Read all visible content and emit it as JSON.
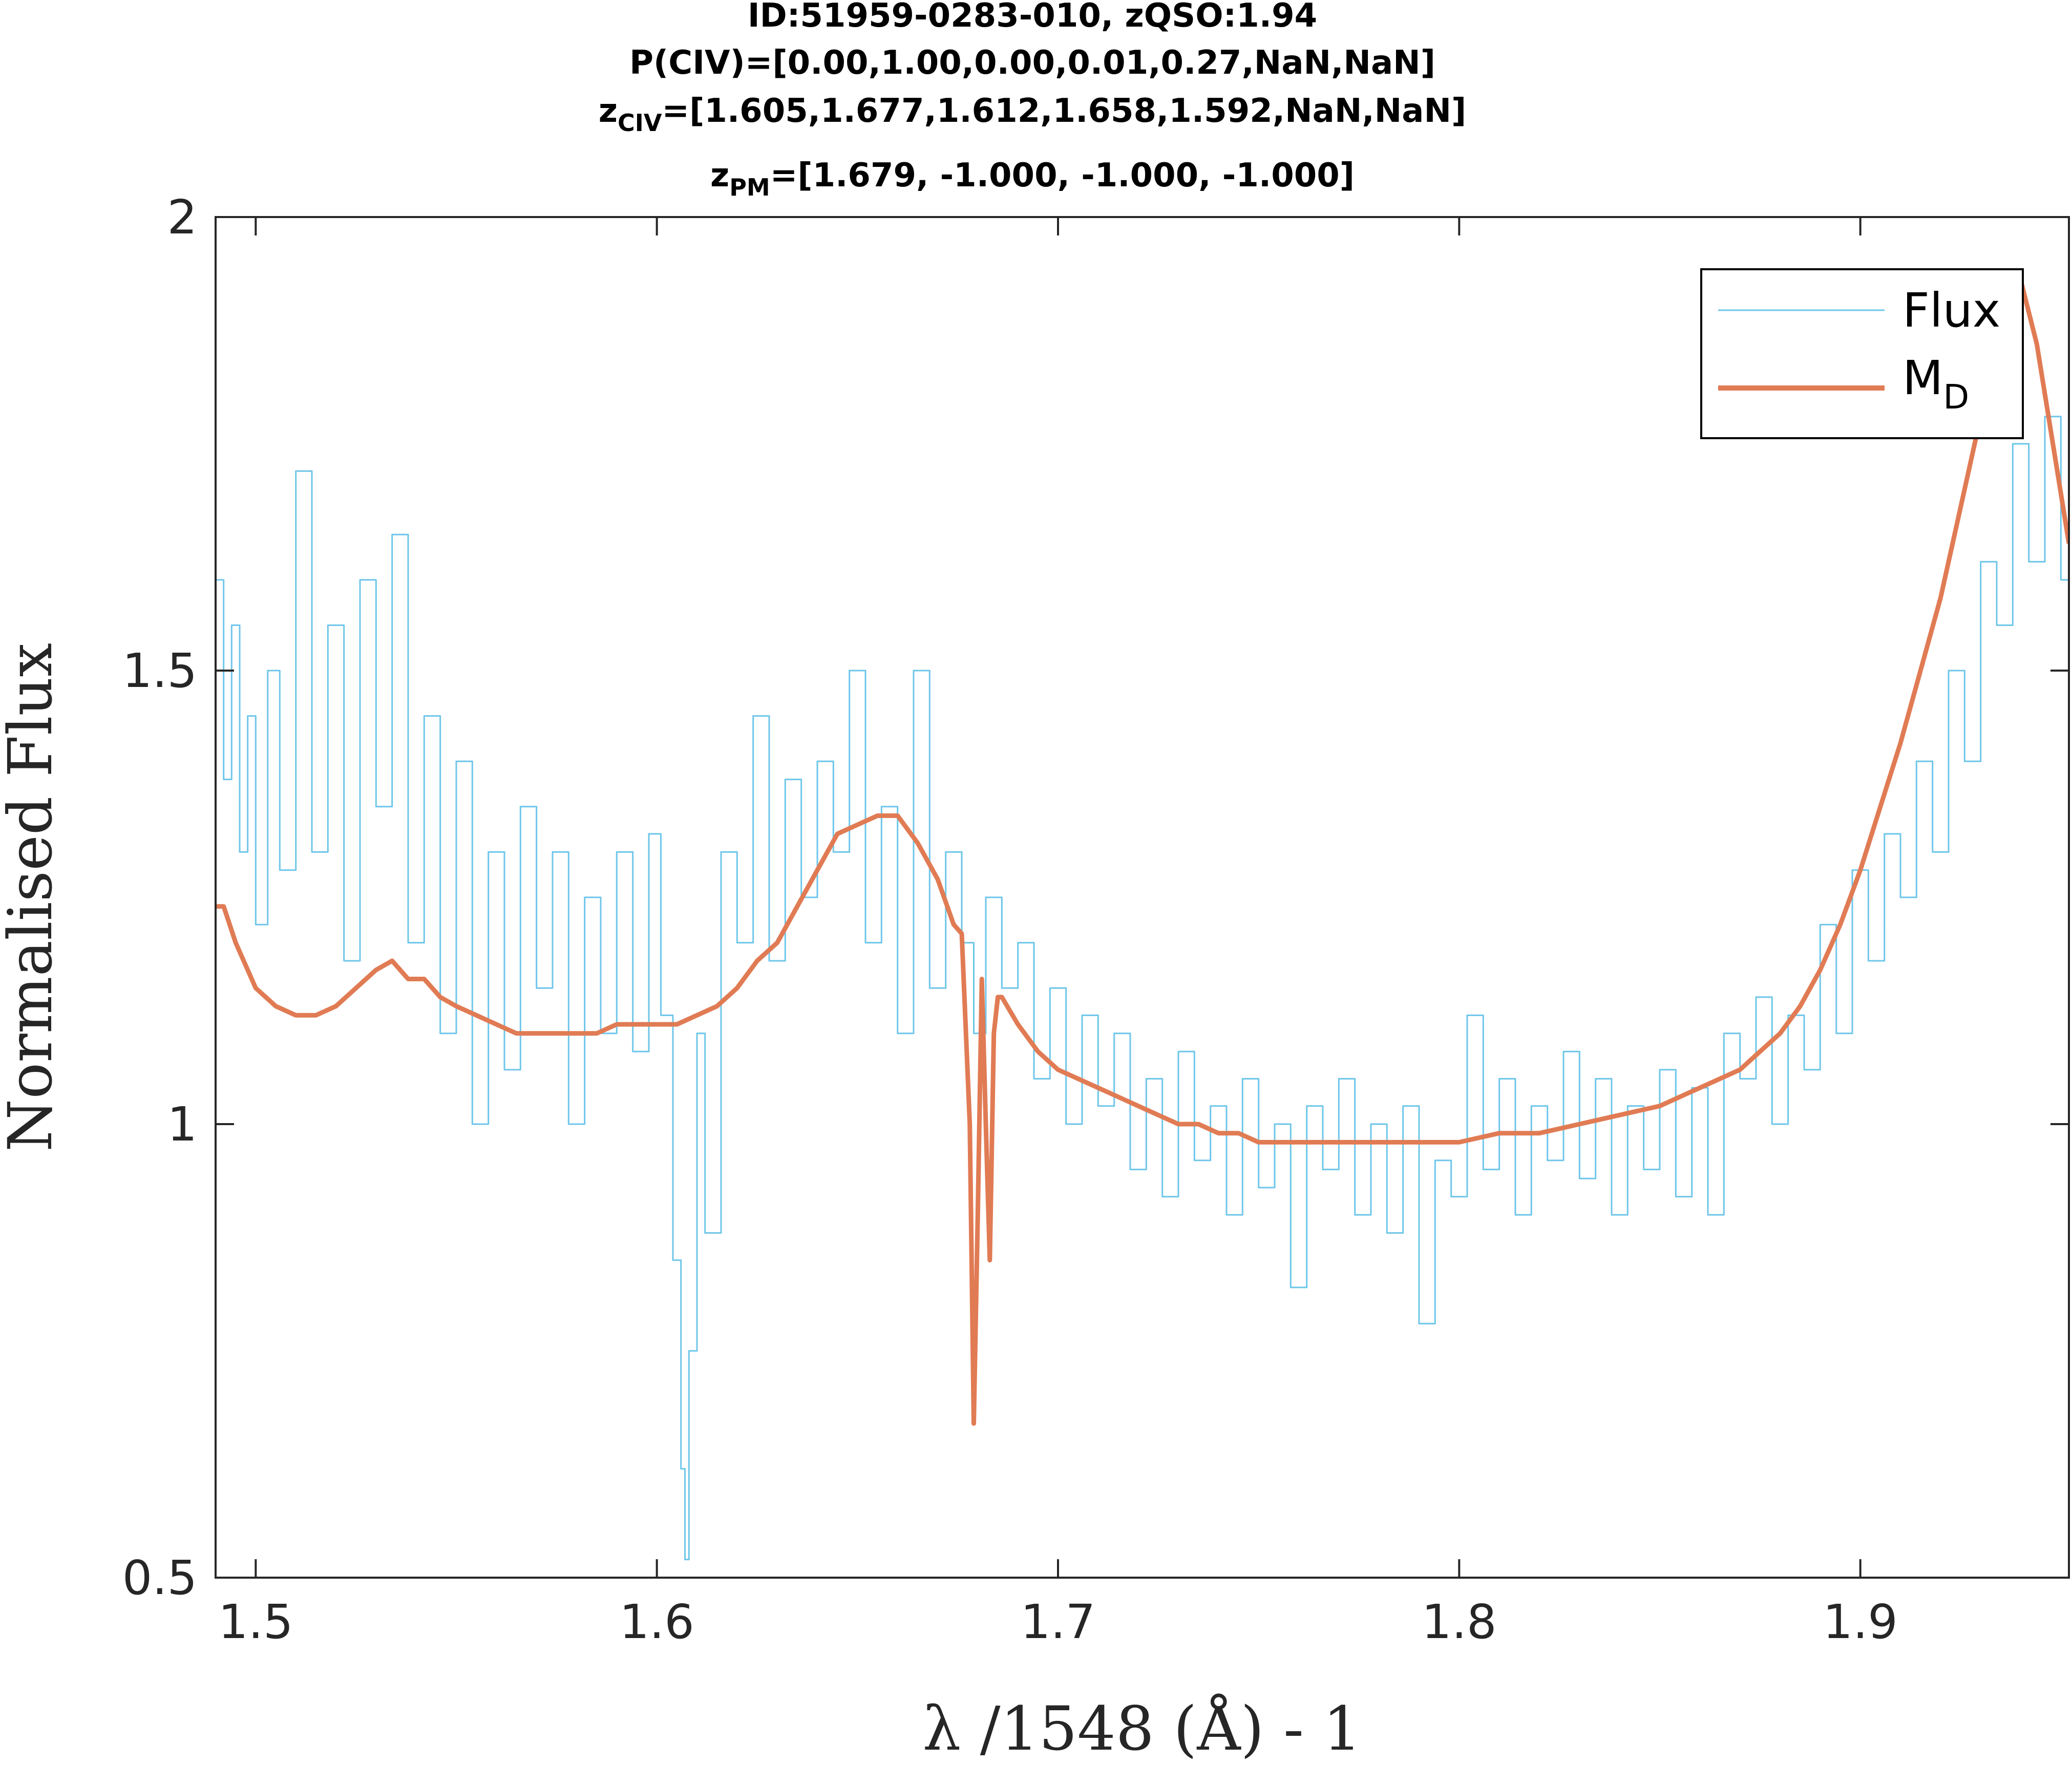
{
  "chart_data": {
    "type": "line",
    "title_lines": {
      "line1": "ID:51959-0283-010, zQSO:1.94",
      "line2": "P(CIV)=[0.00,1.00,0.00,0.01,0.27,NaN,NaN]",
      "line3_sym": "z",
      "line3_sub": "CIV",
      "line3_rest": "=[1.605,1.677,1.612,1.658,1.592,NaN,NaN]",
      "line4_sym": "z",
      "line4_sub": "PM",
      "line4_rest": "=[1.679, -1.000, -1.000, -1.000]"
    },
    "xlabel": "λ /1548 (Å) - 1",
    "ylabel": "Normalised Flux",
    "xlim": [
      1.49,
      1.952
    ],
    "ylim": [
      0.5,
      2.0
    ],
    "xticks": [
      1.5,
      1.6,
      1.7,
      1.8,
      1.9
    ],
    "xtick_labels": [
      "1.5",
      "1.6",
      "1.7",
      "1.8",
      "1.9"
    ],
    "yticks": [
      0.5,
      1.0,
      1.5,
      2.0
    ],
    "ytick_labels": [
      "0.5",
      "1",
      "1.5",
      "2"
    ],
    "legend_position": "top-right",
    "series": [
      {
        "name": "Flux",
        "legend_main": "Flux",
        "legend_sub": "",
        "color": "#6ec6ea",
        "style": "stairs",
        "x": [
          1.49,
          1.492,
          1.494,
          1.496,
          1.498,
          1.5,
          1.503,
          1.506,
          1.51,
          1.514,
          1.518,
          1.522,
          1.526,
          1.53,
          1.534,
          1.538,
          1.542,
          1.546,
          1.55,
          1.554,
          1.558,
          1.562,
          1.566,
          1.57,
          1.574,
          1.578,
          1.582,
          1.586,
          1.59,
          1.594,
          1.598,
          1.601,
          1.604,
          1.606,
          1.607,
          1.608,
          1.61,
          1.612,
          1.616,
          1.62,
          1.624,
          1.628,
          1.632,
          1.636,
          1.64,
          1.644,
          1.648,
          1.652,
          1.656,
          1.66,
          1.664,
          1.668,
          1.672,
          1.676,
          1.679,
          1.682,
          1.686,
          1.69,
          1.694,
          1.698,
          1.702,
          1.706,
          1.71,
          1.714,
          1.718,
          1.722,
          1.726,
          1.73,
          1.734,
          1.738,
          1.742,
          1.746,
          1.75,
          1.754,
          1.758,
          1.762,
          1.766,
          1.77,
          1.774,
          1.778,
          1.782,
          1.786,
          1.79,
          1.794,
          1.798,
          1.802,
          1.806,
          1.81,
          1.814,
          1.818,
          1.822,
          1.826,
          1.83,
          1.834,
          1.838,
          1.842,
          1.846,
          1.85,
          1.854,
          1.858,
          1.862,
          1.866,
          1.87,
          1.874,
          1.878,
          1.882,
          1.886,
          1.89,
          1.894,
          1.898,
          1.902,
          1.906,
          1.91,
          1.914,
          1.918,
          1.922,
          1.926,
          1.93,
          1.934,
          1.938,
          1.942,
          1.946,
          1.95,
          1.952
        ],
        "y": [
          1.6,
          1.38,
          1.55,
          1.3,
          1.45,
          1.22,
          1.5,
          1.28,
          1.72,
          1.3,
          1.55,
          1.18,
          1.6,
          1.35,
          1.65,
          1.2,
          1.45,
          1.1,
          1.4,
          1.0,
          1.3,
          1.06,
          1.35,
          1.15,
          1.3,
          1.0,
          1.25,
          1.1,
          1.3,
          1.08,
          1.32,
          1.12,
          0.85,
          0.62,
          0.52,
          0.75,
          1.1,
          0.88,
          1.3,
          1.2,
          1.45,
          1.18,
          1.38,
          1.25,
          1.4,
          1.3,
          1.5,
          1.2,
          1.35,
          1.1,
          1.5,
          1.15,
          1.3,
          1.2,
          1.1,
          1.25,
          1.15,
          1.2,
          1.05,
          1.15,
          1.0,
          1.12,
          1.02,
          1.1,
          0.95,
          1.05,
          0.92,
          1.08,
          0.96,
          1.02,
          0.9,
          1.05,
          0.93,
          1.0,
          0.82,
          1.02,
          0.95,
          1.05,
          0.9,
          1.0,
          0.88,
          1.02,
          0.78,
          0.96,
          0.92,
          1.12,
          0.95,
          1.05,
          0.9,
          1.02,
          0.96,
          1.08,
          0.94,
          1.05,
          0.9,
          1.02,
          0.95,
          1.06,
          0.92,
          1.04,
          0.9,
          1.1,
          1.05,
          1.14,
          1.0,
          1.12,
          1.06,
          1.22,
          1.1,
          1.28,
          1.18,
          1.32,
          1.25,
          1.4,
          1.3,
          1.5,
          1.4,
          1.62,
          1.55,
          1.75,
          1.62,
          1.78,
          1.6,
          1.6
        ]
      },
      {
        "name": "M_D",
        "legend_main": "M",
        "legend_sub": "D",
        "color": "#e07b54",
        "style": "line",
        "x": [
          1.49,
          1.492,
          1.495,
          1.5,
          1.505,
          1.51,
          1.515,
          1.52,
          1.525,
          1.53,
          1.534,
          1.538,
          1.542,
          1.546,
          1.55,
          1.555,
          1.56,
          1.565,
          1.57,
          1.575,
          1.58,
          1.585,
          1.59,
          1.595,
          1.6,
          1.605,
          1.61,
          1.615,
          1.62,
          1.625,
          1.63,
          1.635,
          1.64,
          1.645,
          1.65,
          1.655,
          1.66,
          1.665,
          1.67,
          1.674,
          1.676,
          1.678,
          1.679,
          1.68,
          1.681,
          1.682,
          1.683,
          1.684,
          1.685,
          1.686,
          1.69,
          1.695,
          1.7,
          1.705,
          1.71,
          1.715,
          1.72,
          1.725,
          1.73,
          1.735,
          1.74,
          1.745,
          1.75,
          1.76,
          1.77,
          1.78,
          1.79,
          1.8,
          1.81,
          1.82,
          1.83,
          1.84,
          1.85,
          1.86,
          1.865,
          1.87,
          1.875,
          1.88,
          1.885,
          1.89,
          1.895,
          1.9,
          1.905,
          1.91,
          1.915,
          1.92,
          1.925,
          1.93,
          1.935,
          1.94,
          1.944,
          1.948,
          1.952
        ],
        "y": [
          1.24,
          1.24,
          1.2,
          1.15,
          1.13,
          1.12,
          1.12,
          1.13,
          1.15,
          1.17,
          1.18,
          1.16,
          1.16,
          1.14,
          1.13,
          1.12,
          1.11,
          1.1,
          1.1,
          1.1,
          1.1,
          1.1,
          1.11,
          1.11,
          1.11,
          1.11,
          1.12,
          1.13,
          1.15,
          1.18,
          1.2,
          1.24,
          1.28,
          1.32,
          1.33,
          1.34,
          1.34,
          1.31,
          1.27,
          1.22,
          1.21,
          1.0,
          0.67,
          0.9,
          1.16,
          1.0,
          0.85,
          1.1,
          1.14,
          1.14,
          1.11,
          1.08,
          1.06,
          1.05,
          1.04,
          1.03,
          1.02,
          1.01,
          1.0,
          1.0,
          0.99,
          0.99,
          0.98,
          0.98,
          0.98,
          0.98,
          0.98,
          0.98,
          0.99,
          0.99,
          1.0,
          1.01,
          1.02,
          1.04,
          1.05,
          1.06,
          1.08,
          1.1,
          1.13,
          1.17,
          1.22,
          1.28,
          1.35,
          1.42,
          1.5,
          1.58,
          1.68,
          1.78,
          1.88,
          1.93,
          1.86,
          1.75,
          1.64
        ]
      }
    ]
  }
}
